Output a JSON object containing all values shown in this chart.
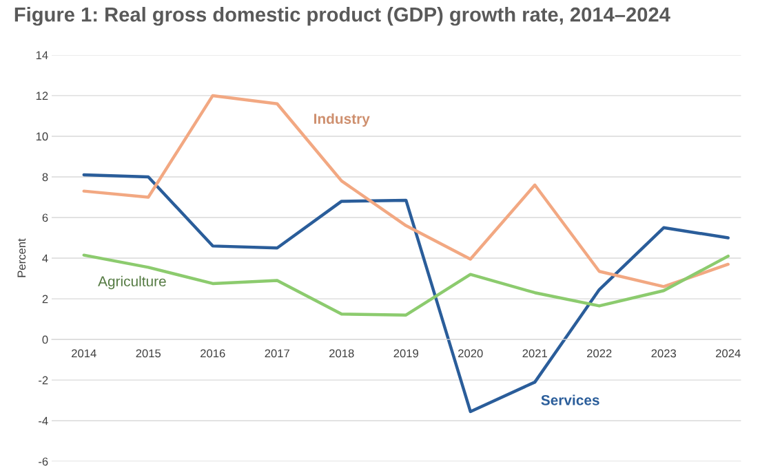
{
  "chart_data": {
    "type": "line",
    "title": "Figure 1: Real gross domestic product (GDP) growth rate, 2014–2024",
    "ylabel": "Percent",
    "categories": [
      "2014",
      "2015",
      "2016",
      "2017",
      "2018",
      "2019",
      "2020",
      "2021",
      "2022",
      "2023",
      "2024"
    ],
    "series": [
      {
        "name": "Services",
        "color": "#2a5d9a",
        "values": [
          8.1,
          8.0,
          4.6,
          4.5,
          6.8,
          6.85,
          -3.55,
          -2.1,
          2.45,
          5.5,
          5.0
        ]
      },
      {
        "name": "Industry",
        "color": "#f2a882",
        "values": [
          7.3,
          7.0,
          12.0,
          11.6,
          7.8,
          5.6,
          3.95,
          7.6,
          3.35,
          2.6,
          3.7
        ]
      },
      {
        "name": "Agriculture",
        "color": "#8ccb6e",
        "values": [
          4.15,
          3.55,
          2.75,
          2.9,
          1.25,
          1.2,
          3.2,
          2.3,
          1.65,
          2.4,
          4.1
        ]
      }
    ],
    "ylim": [
      -6,
      14
    ],
    "yticks": [
      -6,
      -4,
      -2,
      0,
      2,
      4,
      6,
      8,
      10,
      12,
      14
    ],
    "grid": "y",
    "legend": false,
    "marker": "none",
    "line_style": "solid"
  }
}
